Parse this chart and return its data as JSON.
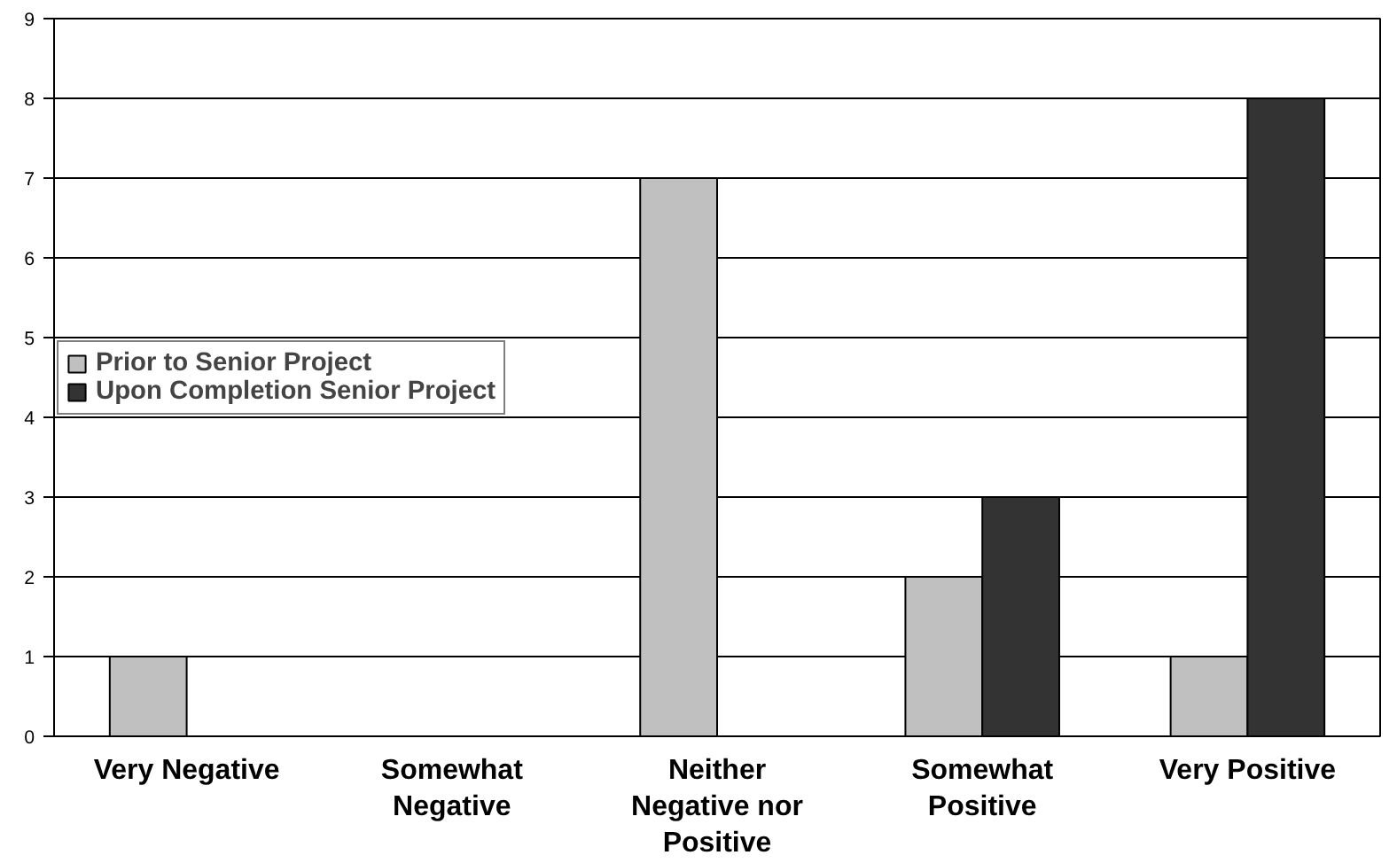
{
  "chart_data": {
    "type": "bar",
    "categories": [
      "Very Negative",
      "Somewhat Negative",
      "Neither Negative nor Positive",
      "Somewhat Positive",
      "Very Positive"
    ],
    "series": [
      {
        "name": "Prior to Senior Project",
        "color": "#c0c0c0",
        "values": [
          1,
          null,
          7,
          2,
          1
        ]
      },
      {
        "name": "Upon Completion Senior Project",
        "color": "#333333",
        "values": [
          null,
          null,
          null,
          3,
          8
        ]
      }
    ],
    "ylim": [
      0,
      9
    ],
    "yticks": [
      0,
      1,
      2,
      3,
      4,
      5,
      6,
      7,
      8,
      9
    ],
    "grid": "y",
    "legend": "left"
  }
}
